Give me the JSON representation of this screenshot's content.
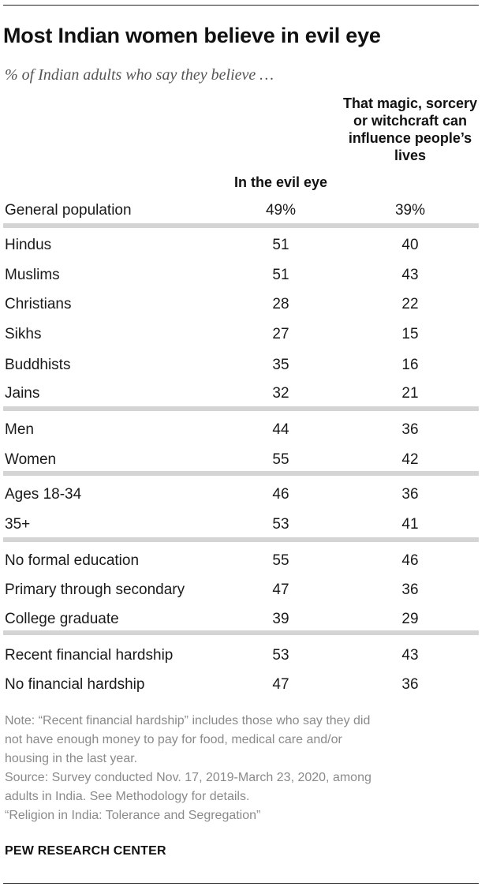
{
  "title": "Most Indian women believe in evil eye",
  "subtitle": "% of Indian adults who say they believe …",
  "chart_data": {
    "type": "table",
    "columns": [
      "In the evil eye",
      "That magic, sorcery or witchcraft can influence people’s lives"
    ],
    "rows": [
      {
        "label": "General population",
        "values": [
          "49%",
          "39%"
        ]
      },
      {
        "label": "Hindus",
        "values": [
          "51",
          "40"
        ]
      },
      {
        "label": "Muslims",
        "values": [
          "51",
          "43"
        ]
      },
      {
        "label": "Christians",
        "values": [
          "28",
          "22"
        ]
      },
      {
        "label": "Sikhs",
        "values": [
          "27",
          "15"
        ]
      },
      {
        "label": "Buddhists",
        "values": [
          "35",
          "16"
        ]
      },
      {
        "label": "Jains",
        "values": [
          "32",
          "21"
        ]
      },
      {
        "label": "Men",
        "values": [
          "44",
          "36"
        ]
      },
      {
        "label": "Women",
        "values": [
          "55",
          "42"
        ]
      },
      {
        "label": "Ages 18-34",
        "values": [
          "46",
          "36"
        ]
      },
      {
        "label": "35+",
        "values": [
          "53",
          "41"
        ]
      },
      {
        "label": "No formal education",
        "values": [
          "55",
          "46"
        ]
      },
      {
        "label": "Primary through secondary",
        "values": [
          "47",
          "36"
        ]
      },
      {
        "label": "College graduate",
        "values": [
          "39",
          "29"
        ]
      },
      {
        "label": "Recent financial hardship",
        "values": [
          "53",
          "43"
        ]
      },
      {
        "label": "No financial hardship",
        "values": [
          "47",
          "36"
        ]
      }
    ]
  },
  "note_lines": [
    "Note: “Recent financial hardship” includes those who say they did",
    "not have enough money to pay for food, medical care and/or",
    "housing in the last year.",
    "Source: Survey conducted Nov. 17, 2019-March 23, 2020, among",
    "adults in India. See Methodology for details.",
    "“Religion in India: Tolerance and Segregation”"
  ],
  "brand": "PEW RESEARCH CENTER"
}
